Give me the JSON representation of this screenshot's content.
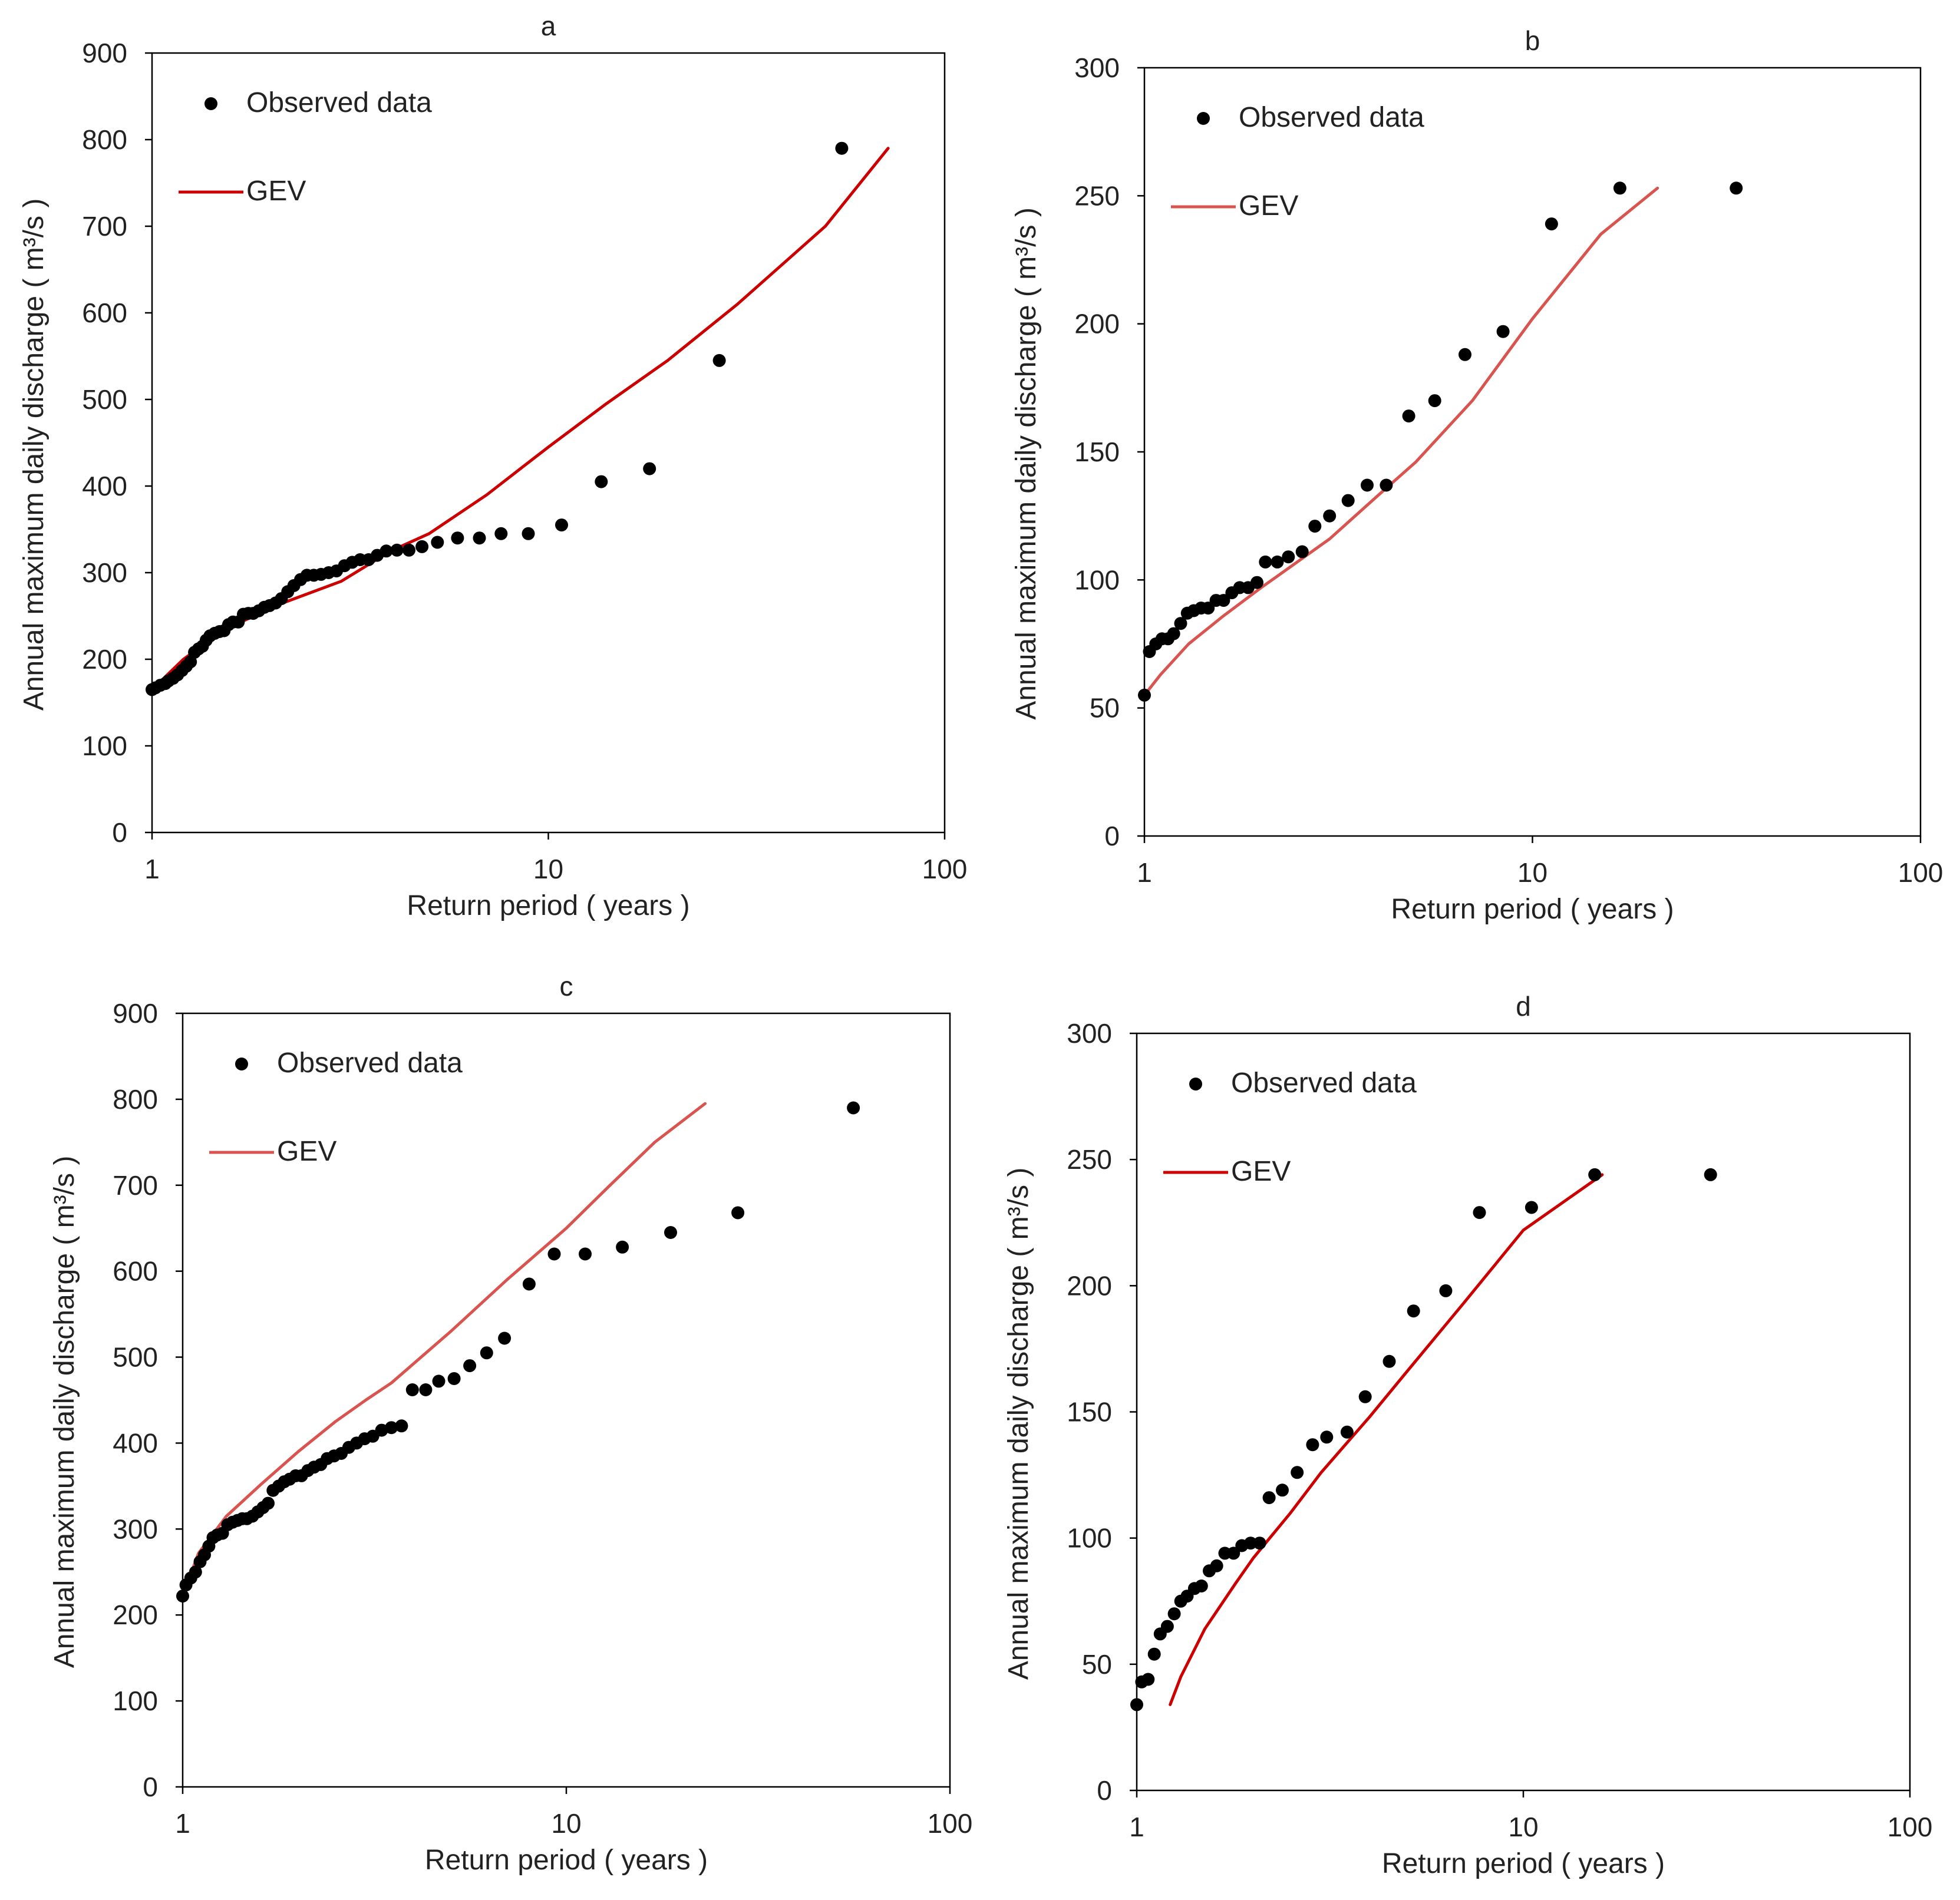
{
  "chart_data": [
    {
      "id": "a",
      "type": "scatter",
      "title": "a",
      "xlabel": "Return period ( years )",
      "ylabel": "Annual maximum daily discharge ( m³/s )",
      "x_scale": "log",
      "xlim": [
        1,
        100
      ],
      "ylim": [
        0,
        900
      ],
      "xticks": [
        "1",
        "10",
        "100"
      ],
      "yticks": [
        "0",
        "100",
        "200",
        "300",
        "400",
        "500",
        "600",
        "700",
        "800",
        "900"
      ],
      "legend": {
        "location": "top-left",
        "observed_label": "Observed data",
        "fit_label": "GEV"
      },
      "fit_color": "#cc0000",
      "series": [
        {
          "name": "Observed data",
          "kind": "markers",
          "x": [
            1.0,
            1.02,
            1.05,
            1.08,
            1.1,
            1.13,
            1.16,
            1.19,
            1.22,
            1.25,
            1.28,
            1.31,
            1.34,
            1.37,
            1.4,
            1.44,
            1.48,
            1.52,
            1.56,
            1.6,
            1.65,
            1.7,
            1.75,
            1.8,
            1.86,
            1.92,
            1.98,
            2.05,
            2.12,
            2.2,
            2.28,
            2.37,
            2.46,
            2.56,
            2.67,
            2.79,
            2.92,
            3.06,
            3.2,
            3.35,
            3.52,
            3.7,
            3.9,
            4.15,
            4.45,
            4.8,
            5.25,
            5.9,
            6.7,
            7.6,
            8.9,
            10.8,
            13.6,
            18.0,
            27.0,
            55.0
          ],
          "y": [
            165,
            167,
            170,
            172,
            175,
            178,
            182,
            187,
            192,
            197,
            208,
            212,
            215,
            222,
            227,
            230,
            232,
            233,
            240,
            243,
            243,
            252,
            253,
            253,
            256,
            260,
            262,
            265,
            270,
            278,
            285,
            292,
            297,
            297,
            298,
            300,
            302,
            308,
            312,
            315,
            315,
            320,
            325,
            326,
            326,
            330,
            335,
            340,
            340,
            345,
            345,
            355,
            405,
            420,
            545,
            790
          ]
        },
        {
          "name": "GEV",
          "kind": "line",
          "x": [
            1.0,
            1.2,
            1.5,
            2.0,
            3.0,
            4.0,
            5.0,
            7.0,
            8.5,
            10.0,
            14.0,
            20.0,
            30.0,
            50.0,
            72.0
          ],
          "y": [
            165,
            200,
            232,
            260,
            290,
            325,
            345,
            390,
            420,
            445,
            495,
            545,
            610,
            700,
            790
          ]
        }
      ]
    },
    {
      "id": "b",
      "type": "scatter",
      "title": "b",
      "xlabel": "Return period ( years )",
      "ylabel": "Annual maximum daily discharge ( m³/s )",
      "x_scale": "log",
      "xlim": [
        1,
        100
      ],
      "ylim": [
        0,
        300
      ],
      "xticks": [
        "1",
        "10",
        "100"
      ],
      "yticks": [
        "0",
        "50",
        "100",
        "150",
        "200",
        "250",
        "300"
      ],
      "legend": {
        "location": "top-left",
        "observed_label": "Observed data",
        "fit_label": "GEV"
      },
      "fit_color": "#d9534f",
      "series": [
        {
          "name": "Observed data",
          "kind": "markers",
          "x": [
            1.0,
            1.03,
            1.07,
            1.11,
            1.15,
            1.19,
            1.24,
            1.29,
            1.34,
            1.4,
            1.46,
            1.53,
            1.6,
            1.68,
            1.76,
            1.85,
            1.95,
            2.05,
            2.2,
            2.35,
            2.55,
            2.75,
            3.0,
            3.35,
            3.75,
            4.2,
            4.8,
            5.6,
            6.7,
            8.4,
            11.2,
            16.8,
            33.5
          ],
          "y": [
            55,
            72,
            75,
            77,
            77,
            79,
            83,
            87,
            88,
            89,
            89,
            92,
            92,
            95,
            97,
            97,
            99,
            107,
            107,
            109,
            111,
            121,
            125,
            131,
            137,
            137,
            164,
            170,
            188,
            197,
            239,
            253,
            253
          ]
        },
        {
          "name": "GEV",
          "kind": "line",
          "x": [
            1.0,
            1.1,
            1.3,
            1.6,
            2.0,
            3.0,
            4.0,
            5.0,
            7.0,
            10.0,
            15.0,
            21.0
          ],
          "y": [
            55,
            63,
            75,
            86,
            97,
            116,
            133,
            146,
            170,
            202,
            235,
            253
          ]
        }
      ]
    },
    {
      "id": "c",
      "type": "scatter",
      "title": "c",
      "xlabel": "Return period ( years )",
      "ylabel": "Annual maximum daily discharge ( m³/s )",
      "x_scale": "log",
      "xlim": [
        1,
        100
      ],
      "ylim": [
        0,
        900
      ],
      "xticks": [
        "1",
        "10",
        "100"
      ],
      "yticks": [
        "0",
        "100",
        "200",
        "300",
        "400",
        "500",
        "600",
        "700",
        "800",
        "900"
      ],
      "legend": {
        "location": "top-left",
        "observed_label": "Observed data",
        "fit_label": "GEV"
      },
      "fit_color": "#d9534f",
      "series": [
        {
          "name": "Observed data",
          "kind": "markers",
          "x": [
            1.0,
            1.02,
            1.05,
            1.08,
            1.11,
            1.14,
            1.17,
            1.2,
            1.23,
            1.27,
            1.31,
            1.35,
            1.39,
            1.43,
            1.47,
            1.52,
            1.57,
            1.62,
            1.67,
            1.72,
            1.78,
            1.84,
            1.9,
            1.97,
            2.04,
            2.12,
            2.2,
            2.29,
            2.38,
            2.48,
            2.59,
            2.71,
            2.84,
            2.98,
            3.13,
            3.3,
            3.5,
            3.72,
            3.97,
            4.3,
            4.65,
            5.1,
            5.6,
            6.2,
            6.9,
            8.0,
            9.3,
            11.2,
            14.0,
            18.7,
            28.0,
            56.0
          ],
          "y": [
            222,
            235,
            243,
            250,
            262,
            270,
            280,
            290,
            293,
            295,
            305,
            308,
            310,
            312,
            312,
            315,
            320,
            325,
            330,
            345,
            350,
            355,
            358,
            362,
            362,
            368,
            372,
            375,
            382,
            385,
            388,
            395,
            400,
            405,
            408,
            415,
            418,
            420,
            462,
            462,
            472,
            475,
            490,
            505,
            522,
            585,
            620,
            620,
            628,
            645,
            668,
            790
          ]
        },
        {
          "name": "GEV",
          "kind": "line",
          "x": [
            1.0,
            1.1,
            1.3,
            1.6,
            2.0,
            2.5,
            3.0,
            3.5,
            5.0,
            7.0,
            10.0,
            13.0,
            17.0,
            23.0
          ],
          "y": [
            222,
            272,
            315,
            352,
            390,
            425,
            450,
            470,
            530,
            590,
            650,
            700,
            750,
            795
          ]
        }
      ]
    },
    {
      "id": "d",
      "type": "scatter",
      "title": "d",
      "xlabel": "Return period ( years )",
      "ylabel": "Annual maximum daily discharge ( m³/s )",
      "x_scale": "log",
      "xlim": [
        1,
        100
      ],
      "ylim": [
        0,
        300
      ],
      "xticks": [
        "1",
        "10",
        "100"
      ],
      "yticks": [
        "0",
        "50",
        "100",
        "150",
        "200",
        "250",
        "300"
      ],
      "legend": {
        "location": "top-left",
        "observed_label": "Observed data",
        "fit_label": "GEV"
      },
      "fit_color": "#cc0000",
      "series": [
        {
          "name": "Observed data",
          "kind": "markers",
          "x": [
            1.0,
            1.03,
            1.07,
            1.11,
            1.15,
            1.2,
            1.25,
            1.3,
            1.35,
            1.41,
            1.47,
            1.54,
            1.61,
            1.69,
            1.78,
            1.87,
            1.97,
            2.08,
            2.2,
            2.38,
            2.6,
            2.85,
            3.1,
            3.5,
            3.9,
            4.5,
            5.2,
            6.3,
            7.7,
            10.5,
            15.3,
            30.5
          ],
          "y": [
            34,
            43,
            44,
            54,
            62,
            65,
            70,
            75,
            77,
            80,
            81,
            87,
            89,
            94,
            94,
            97,
            98,
            98,
            116,
            119,
            126,
            137,
            140,
            142,
            156,
            170,
            190,
            198,
            229,
            231,
            244,
            244
          ]
        },
        {
          "name": "GEV",
          "kind": "line",
          "x": [
            1.22,
            1.3,
            1.5,
            1.8,
            2.0,
            2.5,
            3.0,
            4.0,
            5.0,
            7.0,
            10.0,
            16.0
          ],
          "y": [
            34,
            45,
            64,
            82,
            92,
            110,
            126,
            148,
            166,
            193,
            222,
            244
          ]
        }
      ]
    }
  ]
}
